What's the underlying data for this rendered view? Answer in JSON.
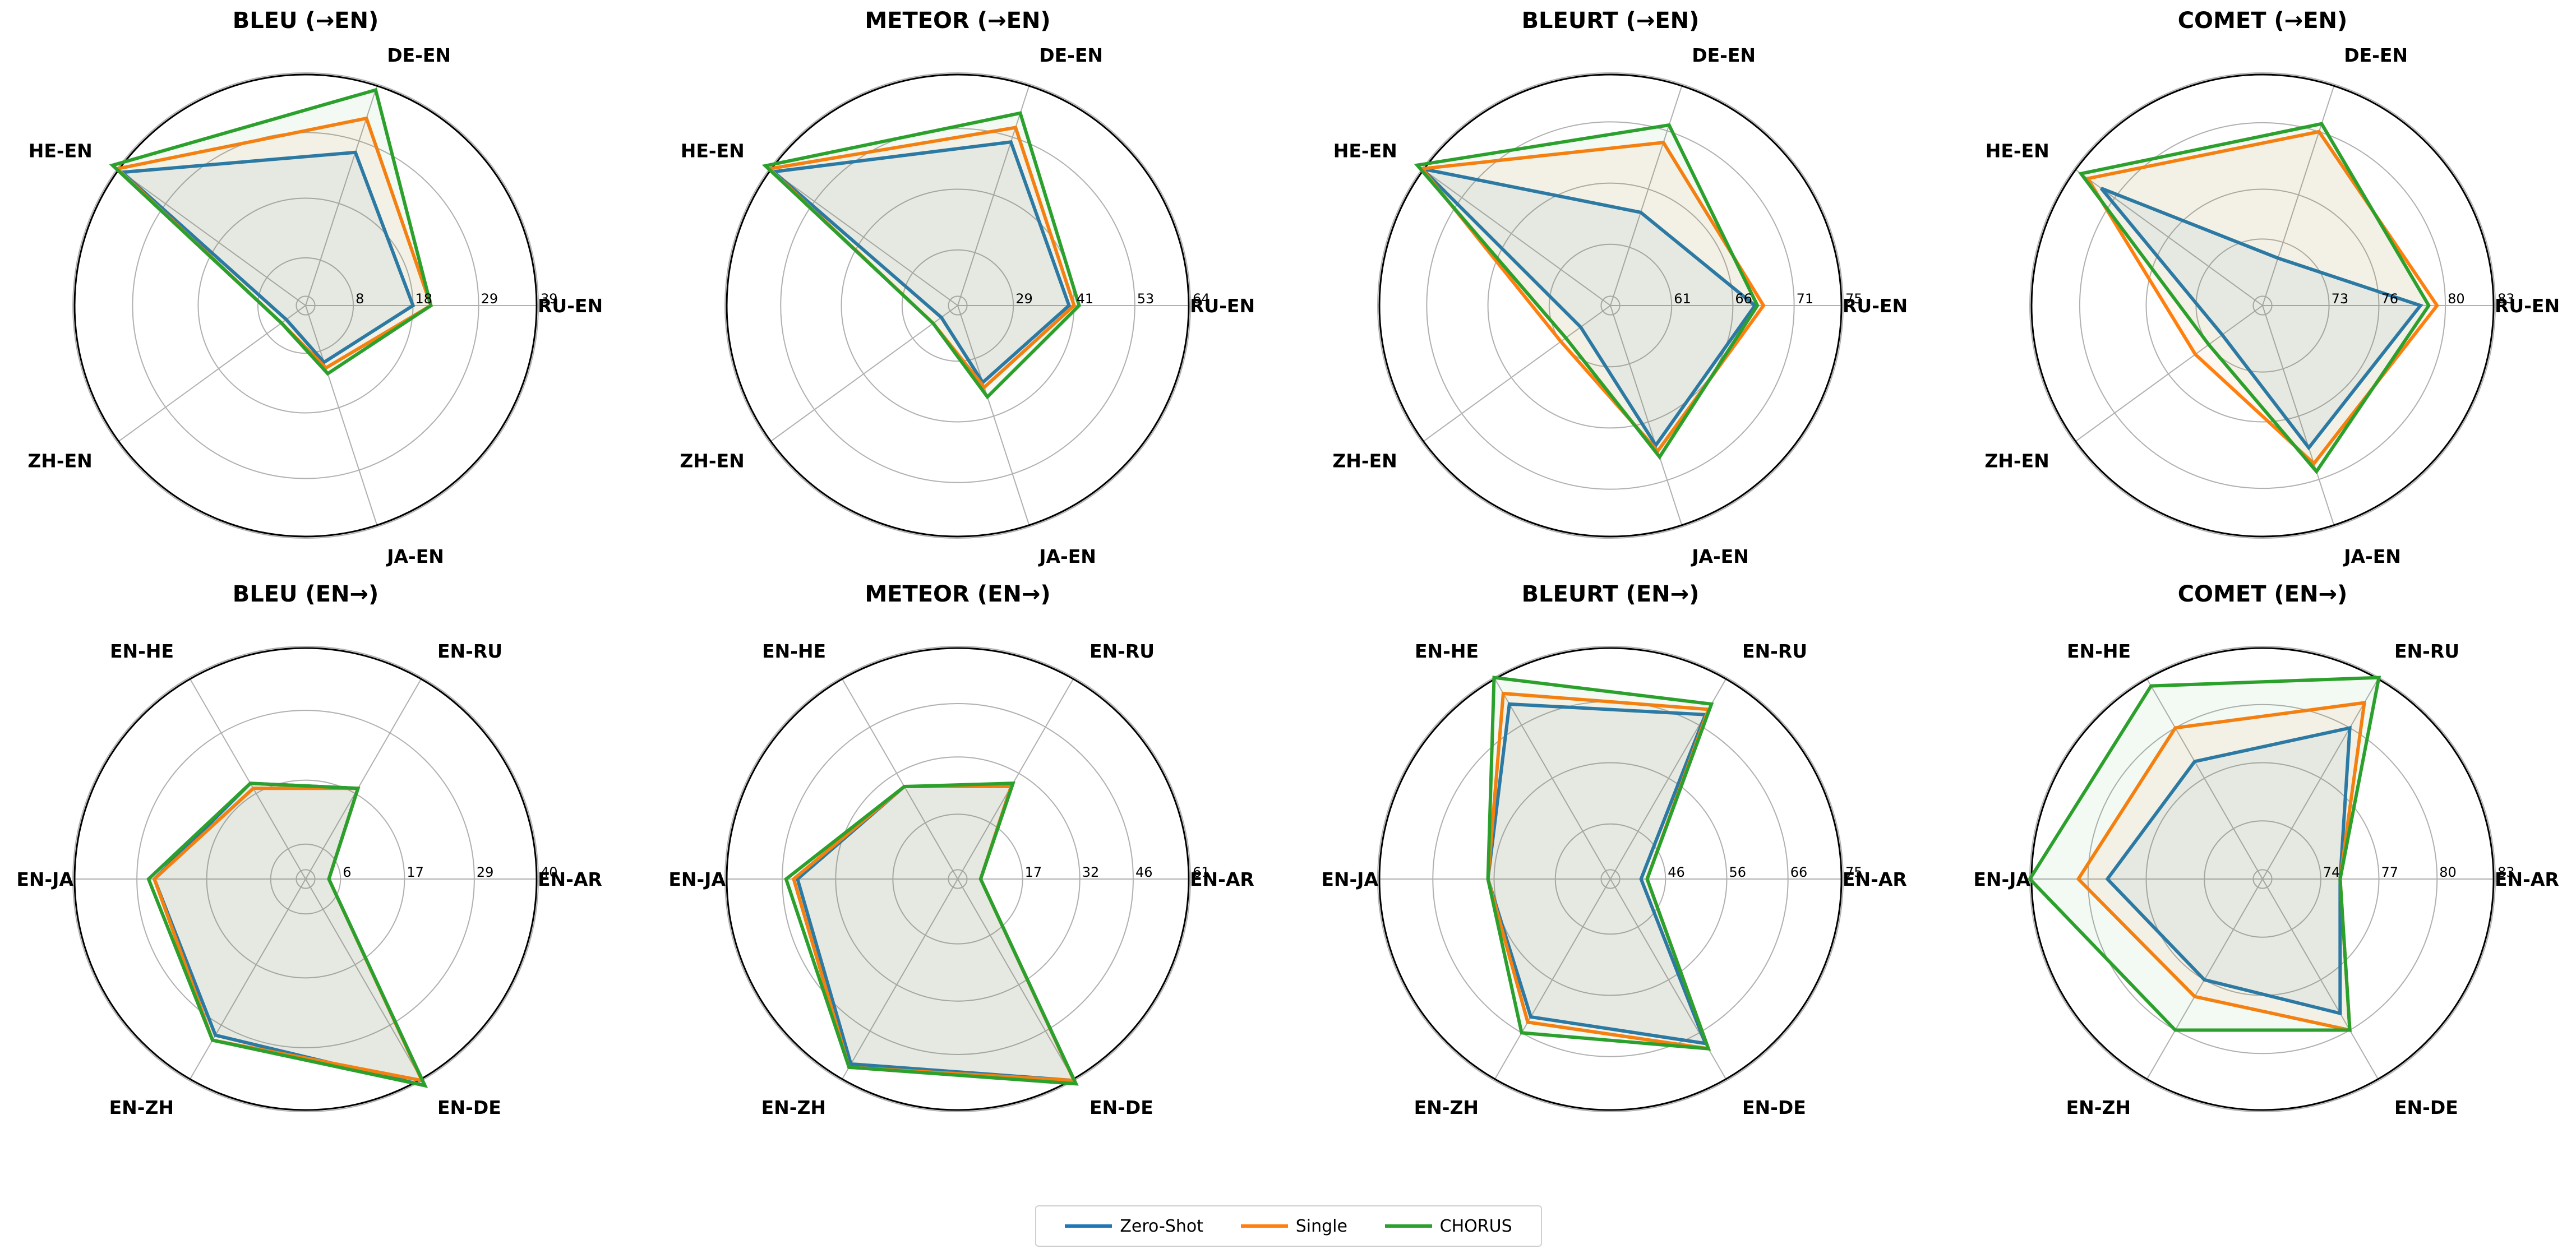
{
  "series_meta": [
    {
      "name": "Zero-Shot",
      "color": "#1f77b4"
    },
    {
      "name": "Single",
      "color": "#ff7f0e"
    },
    {
      "name": "CHORUS",
      "color": "#2ca02c"
    }
  ],
  "legend": {
    "items": [
      "Zero-Shot",
      "Single",
      "CHORUS"
    ]
  },
  "chart_data": [
    {
      "type": "radar",
      "title": "BLEU (→EN)",
      "axes": [
        "RU-EN",
        "DE-EN",
        "HE-EN",
        "ZH-EN",
        "JA-EN"
      ],
      "rmin": 0,
      "rmax": 39,
      "ticks": [
        8,
        18,
        29,
        39
      ],
      "tick_labels": [
        "8",
        "18",
        "29",
        "39"
      ],
      "series": [
        {
          "name": "Zero-Shot",
          "values": [
            18,
            27,
            38,
            4,
            10
          ]
        },
        {
          "name": "Single",
          "values": [
            21,
            33,
            39,
            5,
            11
          ]
        },
        {
          "name": "CHORUS",
          "values": [
            21,
            38,
            40,
            5,
            12
          ]
        }
      ]
    },
    {
      "type": "radar",
      "title": "METEOR (→EN)",
      "axes": [
        "RU-EN",
        "DE-EN",
        "HE-EN",
        "ZH-EN",
        "JA-EN"
      ],
      "rmin": 18,
      "rmax": 64,
      "ticks": [
        29,
        41,
        53,
        64
      ],
      "tick_labels": [
        "29",
        "41",
        "53",
        "64"
      ],
      "series": [
        {
          "name": "Zero-Shot",
          "values": [
            40,
            52,
            63,
            22,
            34
          ]
        },
        {
          "name": "Single",
          "values": [
            41,
            55,
            64,
            24,
            35
          ]
        },
        {
          "name": "CHORUS",
          "values": [
            42,
            58,
            65,
            24,
            37
          ]
        }
      ]
    },
    {
      "type": "radar",
      "title": "BLEURT (→EN)",
      "axes": [
        "RU-EN",
        "DE-EN",
        "HE-EN",
        "ZH-EN",
        "JA-EN"
      ],
      "rmin": 56,
      "rmax": 75,
      "ticks": [
        61,
        66,
        71,
        75
      ],
      "tick_labels": [
        "61",
        "66",
        "71",
        "75"
      ],
      "series": [
        {
          "name": "Zero-Shot",
          "values": [
            67.8,
            64,
            75,
            59,
            68
          ]
        },
        {
          "name": "Single",
          "values": [
            68.5,
            70,
            75,
            61,
            68.5
          ]
        },
        {
          "name": "CHORUS",
          "values": [
            68,
            71.5,
            75.5,
            60.5,
            69
          ]
        }
      ]
    },
    {
      "type": "radar",
      "title": "COMET (→EN)",
      "axes": [
        "RU-EN",
        "DE-EN",
        "HE-EN",
        "ZH-EN",
        "JA-EN"
      ],
      "rmin": 69,
      "rmax": 83,
      "ticks": [
        73,
        76,
        80,
        83
      ],
      "tick_labels": [
        "73",
        "76",
        "80",
        "83"
      ],
      "series": [
        {
          "name": "Zero-Shot",
          "values": [
            78.5,
            72,
            81,
            72,
            78
          ]
        },
        {
          "name": "Single",
          "values": [
            79.5,
            80,
            82,
            74,
            79
          ]
        },
        {
          "name": "CHORUS",
          "values": [
            79,
            80.5,
            82.5,
            73,
            79.5
          ]
        }
      ]
    },
    {
      "type": "radar",
      "title": "BLEU (EN→)",
      "axes": [
        "EN-AR",
        "EN-RU",
        "EN-HE",
        "EN-JA",
        "EN-ZH",
        "EN-DE"
      ],
      "rmin": 0,
      "rmax": 40,
      "ticks": [
        6,
        17,
        29,
        40
      ],
      "tick_labels": [
        "6",
        "17",
        "29",
        "40"
      ],
      "series": [
        {
          "name": "Zero-Shot",
          "values": [
            4,
            18,
            19,
            26,
            31,
            41
          ]
        },
        {
          "name": "Single",
          "values": [
            4,
            18,
            18,
            26,
            32,
            40
          ]
        },
        {
          "name": "CHORUS",
          "values": [
            4,
            18,
            19,
            27,
            32,
            41
          ]
        }
      ]
    },
    {
      "type": "radar",
      "title": "METEOR (EN→)",
      "axes": [
        "EN-AR",
        "EN-RU",
        "EN-HE",
        "EN-JA",
        "EN-ZH",
        "EN-DE"
      ],
      "rmin": 0,
      "rmax": 61,
      "ticks": [
        17,
        32,
        46,
        61
      ],
      "tick_labels": [
        "17",
        "32",
        "46",
        "61"
      ],
      "series": [
        {
          "name": "Zero-Shot",
          "values": [
            6,
            28,
            28,
            42,
            56,
            61
          ]
        },
        {
          "name": "Single",
          "values": [
            6,
            28,
            28,
            43,
            57,
            61
          ]
        },
        {
          "name": "CHORUS",
          "values": [
            6,
            29,
            28,
            45,
            57,
            62
          ]
        }
      ]
    },
    {
      "type": "radar",
      "title": "BLEURT (EN→)",
      "axes": [
        "EN-AR",
        "EN-RU",
        "EN-HE",
        "EN-JA",
        "EN-ZH",
        "EN-DE"
      ],
      "rmin": 37,
      "rmax": 75,
      "ticks": [
        46,
        56,
        66,
        75
      ],
      "tick_labels": [
        "46",
        "56",
        "66",
        "75"
      ],
      "series": [
        {
          "name": "Zero-Shot",
          "values": [
            42,
            68,
            70,
            57,
            63,
            68
          ]
        },
        {
          "name": "Single",
          "values": [
            43,
            69,
            72,
            57,
            64,
            69
          ]
        },
        {
          "name": "CHORUS",
          "values": [
            43,
            70,
            75,
            57,
            66,
            69
          ]
        }
      ]
    },
    {
      "type": "radar",
      "title": "COMET (EN→)",
      "axes": [
        "EN-AR",
        "EN-RU",
        "EN-HE",
        "EN-JA",
        "EN-ZH",
        "EN-DE"
      ],
      "rmin": 71,
      "rmax": 83,
      "ticks": [
        74,
        77,
        80,
        83
      ],
      "tick_labels": [
        "74",
        "77",
        "80",
        "83"
      ],
      "series": [
        {
          "name": "Zero-Shot",
          "values": [
            75,
            80,
            78,
            79,
            77,
            79
          ]
        },
        {
          "name": "Single",
          "values": [
            75,
            81.5,
            80,
            80.5,
            78,
            80
          ]
        },
        {
          "name": "CHORUS",
          "values": [
            75,
            83,
            82.5,
            83,
            80,
            80
          ]
        }
      ]
    }
  ]
}
